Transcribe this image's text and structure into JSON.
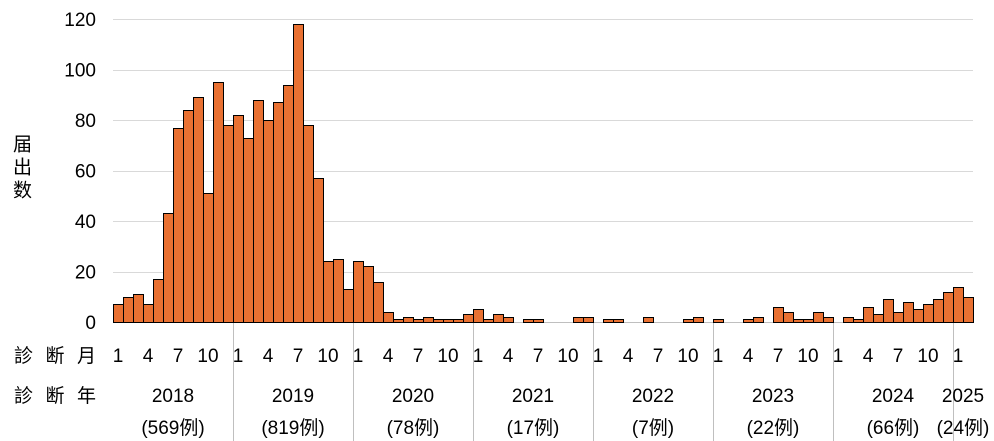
{
  "chart_data": {
    "type": "bar",
    "ylabel": "届出数",
    "ylim": [
      0,
      120
    ],
    "yticks": [
      0,
      20,
      40,
      60,
      80,
      100,
      120
    ],
    "grid": true,
    "legend": "none",
    "bar_color": "#E97132",
    "x_month_row_label": "診断月",
    "x_year_row_label": "診断年",
    "month_tick_labels": [
      "1",
      "4",
      "7",
      "10"
    ],
    "groups": [
      {
        "year": "2018",
        "count_label": "(569例)",
        "values": [
          7,
          10,
          11,
          7,
          17,
          43,
          77,
          84,
          89,
          51,
          95,
          78
        ]
      },
      {
        "year": "2019",
        "count_label": "(819例)",
        "values": [
          82,
          73,
          88,
          80,
          87,
          94,
          118,
          78,
          57,
          24,
          25,
          13
        ]
      },
      {
        "year": "2020",
        "count_label": "(78例)",
        "values": [
          24,
          22,
          16,
          4,
          1,
          2,
          1,
          2,
          1,
          1,
          1,
          3
        ]
      },
      {
        "year": "2021",
        "count_label": "(17例)",
        "values": [
          5,
          1,
          3,
          2,
          0,
          1,
          1,
          0,
          0,
          0,
          2,
          2
        ]
      },
      {
        "year": "2022",
        "count_label": "(7例)",
        "values": [
          0,
          1,
          1,
          0,
          0,
          2,
          0,
          0,
          0,
          1,
          2,
          0
        ]
      },
      {
        "year": "2023",
        "count_label": "(22例)",
        "values": [
          1,
          0,
          0,
          1,
          2,
          0,
          6,
          4,
          1,
          1,
          4,
          2
        ]
      },
      {
        "year": "2024",
        "count_label": "(66例)",
        "values": [
          0,
          2,
          1,
          6,
          3,
          9,
          4,
          8,
          5,
          7,
          9,
          12
        ]
      },
      {
        "year": "2025",
        "count_label": "(24例)",
        "values": [
          14,
          10
        ]
      }
    ]
  }
}
